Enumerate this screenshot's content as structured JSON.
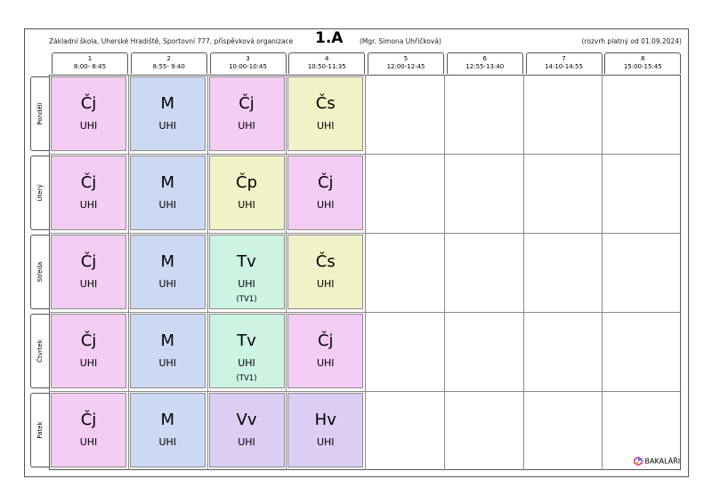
{
  "header": {
    "school": "Základní škola, Uherské Hradiště, Sportovní 777, příspěvková organizace",
    "class_name": "1.A",
    "teacher": "(Mgr. Simona Uhříčková)",
    "validity": "(rozvrh platný od 01.09.2024)"
  },
  "periods": [
    {
      "num": "1",
      "time": "8:00- 8:45"
    },
    {
      "num": "2",
      "time": "8:55- 9:40"
    },
    {
      "num": "3",
      "time": "10:00-10:45"
    },
    {
      "num": "4",
      "time": "10:50-11:35"
    },
    {
      "num": "5",
      "time": "12:00-12:45"
    },
    {
      "num": "6",
      "time": "12:55-13:40"
    },
    {
      "num": "7",
      "time": "14:10-14:55"
    },
    {
      "num": "8",
      "time": "15:00-15:45"
    }
  ],
  "days": [
    "Pondělí",
    "Úterý",
    "Středa",
    "Čtvrtek",
    "Pátek"
  ],
  "colors": {
    "pink": "#f3cdf3",
    "blue": "#cbd9f3",
    "yellow": "#f2f2c9",
    "green": "#cdf3e3",
    "purple": "#dccdf3"
  },
  "lessons": [
    [
      {
        "subject": "Čj",
        "room": "UHI",
        "group": "",
        "color": "#f3cdf3"
      },
      {
        "subject": "M",
        "room": "UHI",
        "group": "",
        "color": "#cbd9f3"
      },
      {
        "subject": "Čj",
        "room": "UHI",
        "group": "",
        "color": "#f3cdf3"
      },
      {
        "subject": "Čs",
        "room": "UHI",
        "group": "",
        "color": "#f2f2c9"
      }
    ],
    [
      {
        "subject": "Čj",
        "room": "UHI",
        "group": "",
        "color": "#f3cdf3"
      },
      {
        "subject": "M",
        "room": "UHI",
        "group": "",
        "color": "#cbd9f3"
      },
      {
        "subject": "Čp",
        "room": "UHI",
        "group": "",
        "color": "#f2f2c9"
      },
      {
        "subject": "Čj",
        "room": "UHI",
        "group": "",
        "color": "#f3cdf3"
      }
    ],
    [
      {
        "subject": "Čj",
        "room": "UHI",
        "group": "",
        "color": "#f3cdf3"
      },
      {
        "subject": "M",
        "room": "UHI",
        "group": "",
        "color": "#cbd9f3"
      },
      {
        "subject": "Tv",
        "room": "UHI",
        "group": "(TV1)",
        "color": "#cdf3e3"
      },
      {
        "subject": "Čs",
        "room": "UHI",
        "group": "",
        "color": "#f2f2c9"
      }
    ],
    [
      {
        "subject": "Čj",
        "room": "UHI",
        "group": "",
        "color": "#f3cdf3"
      },
      {
        "subject": "M",
        "room": "UHI",
        "group": "",
        "color": "#cbd9f3"
      },
      {
        "subject": "Tv",
        "room": "UHI",
        "group": "(TV1)",
        "color": "#cdf3e3"
      },
      {
        "subject": "Čj",
        "room": "UHI",
        "group": "",
        "color": "#f3cdf3"
      }
    ],
    [
      {
        "subject": "Čj",
        "room": "UHI",
        "group": "",
        "color": "#f3cdf3"
      },
      {
        "subject": "M",
        "room": "UHI",
        "group": "",
        "color": "#cbd9f3"
      },
      {
        "subject": "Vv",
        "room": "UHI",
        "group": "",
        "color": "#dccdf3"
      },
      {
        "subject": "Hv",
        "room": "UHI",
        "group": "",
        "color": "#dccdf3"
      }
    ]
  ],
  "brand": {
    "name": "BAKALÁŘI",
    "icon": "bakalari-logo-icon"
  }
}
